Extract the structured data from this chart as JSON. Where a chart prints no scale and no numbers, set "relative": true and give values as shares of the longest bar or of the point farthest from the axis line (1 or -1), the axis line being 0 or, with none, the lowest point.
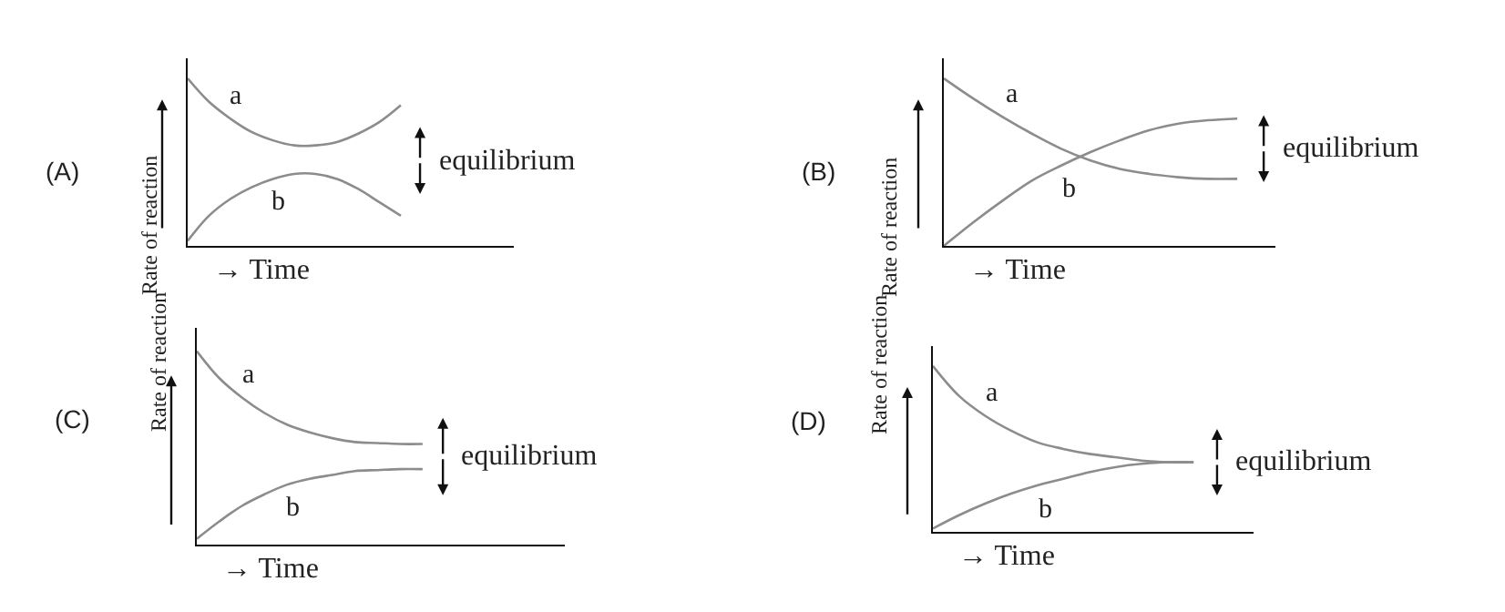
{
  "chart_data": [
    {
      "type": "line",
      "title": "(A)",
      "xlabel": "→ Time",
      "ylabel": "Rate of reaction",
      "relative": true,
      "marker": "none",
      "categories": [
        null,
        null,
        null,
        null,
        null,
        null,
        null,
        null,
        null,
        null,
        null,
        null,
        null,
        null,
        null,
        null
      ],
      "series": [
        {
          "name": "a",
          "color": "#8c8c8c",
          "values": [
            1.0,
            0.86,
            0.76,
            0.68,
            0.63,
            0.6,
            0.6,
            0.62,
            0.67,
            0.74,
            0.84,
            null,
            null,
            null,
            null,
            null
          ]
        },
        {
          "name": "b",
          "color": "#8c8c8c",
          "values": [
            0.03,
            0.18,
            0.28,
            0.35,
            0.4,
            0.43,
            0.43,
            0.4,
            0.34,
            0.26,
            0.18,
            null,
            null,
            null,
            null,
            null
          ]
        }
      ],
      "annotations": [
        "equilibrium"
      ]
    },
    {
      "type": "line",
      "title": "(B)",
      "xlabel": "→ Time",
      "ylabel": "Rate of reaction",
      "relative": true,
      "marker": "none",
      "categories": [
        null,
        null,
        null,
        null,
        null,
        null,
        null,
        null,
        null,
        null,
        null,
        null
      ],
      "series": [
        {
          "name": "a",
          "color": "#8c8c8c",
          "values": [
            1.0,
            0.88,
            0.77,
            0.67,
            0.58,
            0.51,
            0.46,
            0.43,
            0.41,
            0.4,
            0.4,
            null
          ]
        },
        {
          "name": "b",
          "color": "#8c8c8c",
          "values": [
            0.0,
            0.14,
            0.27,
            0.39,
            0.48,
            0.56,
            0.63,
            0.69,
            0.73,
            0.75,
            0.76,
            null
          ]
        }
      ],
      "annotations": [
        "equilibrium"
      ]
    },
    {
      "type": "line",
      "title": "(C)",
      "xlabel": "→ Time",
      "ylabel": "Rate of reaction",
      "relative": true,
      "marker": "none",
      "categories": [
        null,
        null,
        null,
        null,
        null,
        null,
        null,
        null,
        null,
        null,
        null,
        null,
        null,
        null,
        null,
        null,
        null
      ],
      "series": [
        {
          "name": "a",
          "color": "#8c8c8c",
          "values": [
            1.0,
            0.86,
            0.76,
            0.68,
            0.62,
            0.58,
            0.55,
            0.53,
            0.525,
            0.52,
            0.52,
            null,
            null,
            null,
            null,
            null,
            null
          ]
        },
        {
          "name": "b",
          "color": "#8c8c8c",
          "values": [
            0.03,
            0.12,
            0.2,
            0.26,
            0.31,
            0.34,
            0.36,
            0.38,
            0.385,
            0.39,
            0.39,
            null,
            null,
            null,
            null,
            null,
            null
          ]
        }
      ],
      "annotations": [
        "equilibrium"
      ]
    },
    {
      "type": "line",
      "title": "(D)",
      "xlabel": "→ Time",
      "ylabel": "Rate of reaction",
      "relative": true,
      "marker": "none",
      "categories": [
        null,
        null,
        null,
        null,
        null,
        null,
        null,
        null,
        null,
        null,
        null,
        null,
        null
      ],
      "series": [
        {
          "name": "a",
          "color": "#8c8c8c",
          "values": [
            1.0,
            0.82,
            0.7,
            0.61,
            0.54,
            0.5,
            0.47,
            0.45,
            0.43,
            0.42,
            0.42,
            null,
            null
          ]
        },
        {
          "name": "b",
          "color": "#8c8c8c",
          "values": [
            0.02,
            0.1,
            0.17,
            0.23,
            0.28,
            0.32,
            0.36,
            0.39,
            0.41,
            0.42,
            0.42,
            null,
            null
          ]
        }
      ],
      "annotations": [
        "equilibrium"
      ]
    }
  ]
}
